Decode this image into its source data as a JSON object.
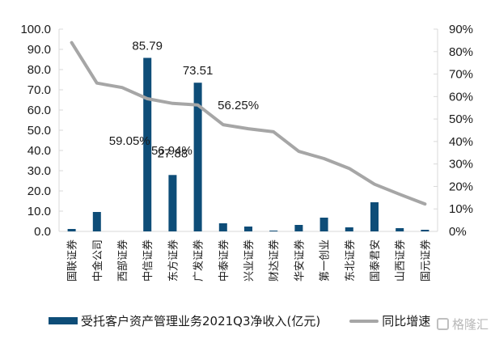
{
  "chart_data": {
    "type": "bar+line",
    "title": "",
    "categories": [
      "国联证券",
      "中金公司",
      "西部证券",
      "中信证券",
      "东方证券",
      "广发证券",
      "中泰证券",
      "兴业证券",
      "财达证券",
      "华安证券",
      "第一创业",
      "东北证券",
      "国泰君安",
      "山西证券",
      "国元证券"
    ],
    "series": [
      {
        "name": "受托客户资产管理业务2021Q3净收入(亿元)",
        "type": "bar",
        "axis": "left",
        "color": "#0e4d78",
        "values": [
          1.2,
          9.6,
          0.0,
          85.79,
          27.88,
          73.51,
          4.0,
          2.4,
          0.4,
          3.2,
          6.8,
          2.0,
          14.4,
          1.6,
          0.8
        ],
        "labels_shown": {
          "3": "85.79",
          "4": "27.88",
          "5": "73.51"
        }
      },
      {
        "name": "同比增速",
        "type": "line",
        "axis": "right",
        "color": "#a6a6a6",
        "values": [
          0.84,
          0.66,
          0.64,
          0.5905,
          0.5694,
          0.5625,
          0.475,
          0.457,
          0.443,
          0.356,
          0.324,
          0.28,
          0.21,
          0.165,
          0.122
        ],
        "labels_shown": {
          "3": "59.05%",
          "4": "56.94%",
          "5": "56.25%"
        }
      }
    ],
    "left_axis": {
      "min": 0,
      "max": 100,
      "step": 10,
      "ticks": [
        "0.0",
        "10.0",
        "20.0",
        "30.0",
        "40.0",
        "50.0",
        "60.0",
        "70.0",
        "80.0",
        "90.0",
        "100.0"
      ]
    },
    "right_axis": {
      "min": 0,
      "max": 0.9,
      "step": 0.1,
      "ticks": [
        "0%",
        "10%",
        "20%",
        "30%",
        "40%",
        "50%",
        "60%",
        "70%",
        "80%",
        "90%"
      ]
    },
    "xlabel": "",
    "ylabel": "",
    "grid": false,
    "legend_position": "bottom"
  },
  "legend": {
    "bar_label": "受托客户资产管理业务2021Q3净收入(亿元)",
    "line_label": "同比增速"
  },
  "watermark": {
    "text": "格隆汇"
  }
}
